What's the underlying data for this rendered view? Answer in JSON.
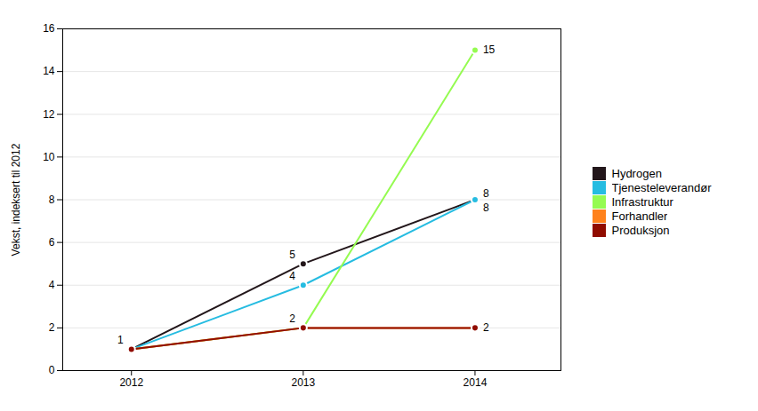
{
  "chart_data": {
    "type": "line",
    "x": [
      2012,
      2013,
      2014
    ],
    "series": [
      {
        "name": "Hydrogen",
        "values": [
          1,
          5,
          8
        ]
      },
      {
        "name": "Tjenesteleverandør",
        "values": [
          1,
          4,
          8
        ]
      },
      {
        "name": "Infrastruktur",
        "values": [
          1,
          2,
          15
        ]
      },
      {
        "name": "Forhandler",
        "values": [
          1,
          2,
          2
        ]
      },
      {
        "name": "Produksjon",
        "values": [
          1,
          2,
          2
        ]
      }
    ],
    "ylabel": "Vekst, indeksert til 2012",
    "xlim": [
      2011.6,
      2014.5
    ],
    "xticks": [
      2012,
      2013,
      2014
    ],
    "ylim": [
      0,
      16
    ],
    "yticks": [
      0,
      2,
      4,
      6,
      8,
      10,
      12,
      14,
      16
    ],
    "grid": true,
    "legend": "right",
    "marker": "circle",
    "annotations": [
      {
        "text": "1",
        "x": 2012,
        "y": 1
      },
      {
        "text": "5",
        "x": 2013,
        "y": 5
      },
      {
        "text": "4",
        "x": 2013,
        "y": 4
      },
      {
        "text": "2",
        "x": 2013,
        "y": 2
      },
      {
        "text": "15",
        "x": 2014,
        "y": 15
      },
      {
        "text": "8",
        "x": 2014,
        "y": 8.3
      },
      {
        "text": "8",
        "x": 2014,
        "y": 7.6
      },
      {
        "text": "2",
        "x": 2014,
        "y": 2
      }
    ]
  }
}
